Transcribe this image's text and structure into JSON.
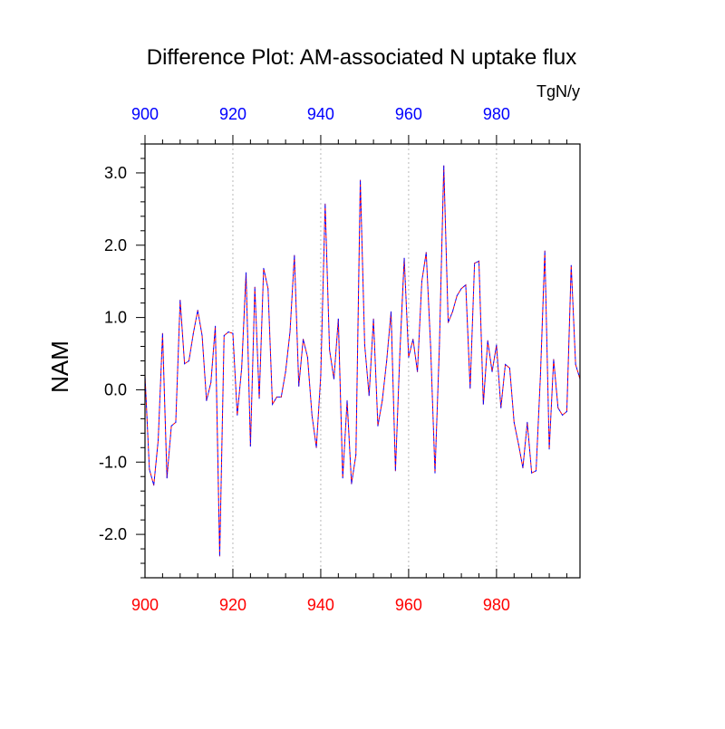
{
  "chart_data": {
    "type": "line",
    "title": "Difference Plot: AM-associated N uptake flux",
    "units": "TgN/y",
    "ylabel": "NAM",
    "xlabel": "",
    "xlim": [
      900,
      999
    ],
    "ylim": [
      -2.6,
      3.4
    ],
    "grid": "vertical dotted lines at major x ticks",
    "x_ticks": [
      900,
      920,
      940,
      960,
      980
    ],
    "x_tick_labels": [
      "900",
      "920",
      "940",
      "960",
      "980"
    ],
    "y_ticks": [
      -2.0,
      -1.0,
      0.0,
      1.0,
      2.0,
      3.0
    ],
    "y_tick_labels": [
      "-2.0",
      "-1.0",
      "0.0",
      "1.0",
      "2.0",
      "3.0"
    ],
    "colors": {
      "top_axis_labels": "#0000ff",
      "bottom_axis_labels": "#ff0000",
      "series_dash_1": "#ff0000",
      "series_dash_2": "#0000ff"
    },
    "x": [
      900,
      901,
      902,
      903,
      904,
      905,
      906,
      907,
      908,
      909,
      910,
      911,
      912,
      913,
      914,
      915,
      916,
      917,
      918,
      919,
      920,
      921,
      922,
      923,
      924,
      925,
      926,
      927,
      928,
      929,
      930,
      931,
      932,
      933,
      934,
      935,
      936,
      937,
      938,
      939,
      940,
      941,
      942,
      943,
      944,
      945,
      946,
      947,
      948,
      949,
      950,
      951,
      952,
      953,
      954,
      955,
      956,
      957,
      958,
      959,
      960,
      961,
      962,
      963,
      964,
      965,
      966,
      967,
      968,
      969,
      970,
      971,
      972,
      973,
      974,
      975,
      976,
      977,
      978,
      979,
      980,
      981,
      982,
      983,
      984,
      985,
      986,
      987,
      988,
      989,
      990,
      991,
      992,
      993,
      994,
      995,
      996,
      997,
      998,
      999
    ],
    "series": [
      {
        "values": [
          0.2,
          -1.1,
          -1.32,
          -0.7,
          0.78,
          -1.22,
          -0.5,
          -0.45,
          1.24,
          0.36,
          0.4,
          0.78,
          1.1,
          0.75,
          -0.15,
          0.1,
          0.88,
          -2.3,
          0.75,
          0.8,
          0.78,
          -0.35,
          0.3,
          1.62,
          -0.78,
          1.42,
          -0.12,
          1.68,
          1.4,
          -0.2,
          -0.1,
          -0.1,
          0.25,
          0.8,
          1.86,
          0.05,
          0.7,
          0.45,
          -0.35,
          -0.8,
          0.2,
          2.57,
          0.55,
          0.15,
          0.98,
          -1.22,
          -0.15,
          -1.3,
          -0.9,
          2.9,
          0.62,
          -0.08,
          0.98,
          -0.5,
          -0.15,
          0.4,
          1.08,
          -1.12,
          0.5,
          1.82,
          0.45,
          0.7,
          0.25,
          1.5,
          1.9,
          0.6,
          -1.15,
          0.6,
          3.1,
          0.93,
          1.08,
          1.3,
          1.4,
          1.45,
          0.02,
          1.75,
          1.78,
          -0.2,
          0.68,
          0.25,
          0.62,
          -0.25,
          0.35,
          0.3,
          -0.45,
          -0.75,
          -1.08,
          -0.45,
          -1.15,
          -1.12,
          0.2,
          1.92,
          -0.82,
          0.42,
          -0.25,
          -0.35,
          -0.3,
          1.72,
          0.35,
          0.15
        ]
      }
    ]
  }
}
